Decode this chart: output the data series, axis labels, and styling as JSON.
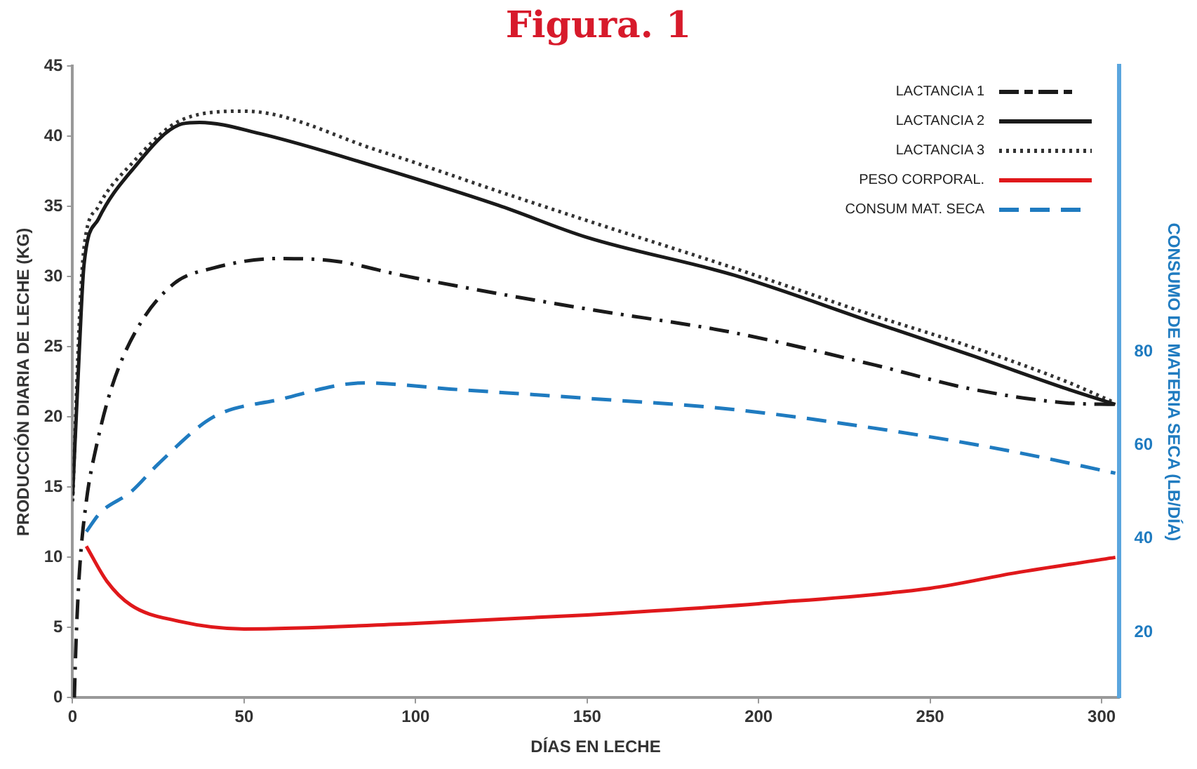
{
  "chart_data": {
    "type": "line",
    "title": "Figura. 1",
    "xlabel": "DÍAS EN LECHE",
    "ylabel": "PRODUCCIÓN DIARIA DE LECHE (KG)",
    "y2label": "CONSUMO DE MATERIA SECA (LB/DÍA)",
    "xlim": [
      0,
      305
    ],
    "xticks": [
      0,
      50,
      100,
      150,
      200,
      250,
      300
    ],
    "ylim": [
      0,
      45
    ],
    "yticks": [
      0,
      5,
      10,
      15,
      20,
      25,
      30,
      35,
      40,
      45
    ],
    "y2lim": [
      6,
      141
    ],
    "y2ticks": [
      20,
      40,
      60,
      80
    ],
    "grid": false,
    "legend": "top right",
    "marker": "none",
    "series": [
      {
        "name": "LACTANCIA 1",
        "color": "#1a1a1a",
        "line_style": "dashdot",
        "x": [
          0.5,
          1,
          2,
          4,
          7,
          11.5,
          18.6,
          29.5,
          40.7,
          60,
          77,
          96,
          124,
          150,
          193,
          234,
          262,
          290,
          304
        ],
        "values": [
          0,
          4,
          9,
          14,
          18,
          22.2,
          26.2,
          29.5,
          30.6,
          31.3,
          31.1,
          30.1,
          28.8,
          27.7,
          26,
          23.7,
          22,
          21,
          20.9
        ]
      },
      {
        "name": "LACTANCIA 2",
        "color": "#1a1a1a",
        "line_style": "solid",
        "x": [
          0,
          2,
          3.3,
          7.5,
          17,
          32,
          37,
          54.6,
          89,
          124,
          150,
          193,
          234,
          262,
          290,
          304
        ],
        "values": [
          14.4,
          25,
          30.8,
          34.1,
          37.5,
          40.9,
          41,
          40.2,
          37.8,
          35.1,
          32.8,
          30.1,
          26.7,
          24.4,
          22,
          20.9
        ]
      },
      {
        "name": "LACTANCIA 3",
        "color": "#333333",
        "line_style": "dotted",
        "x": [
          0,
          2,
          3.3,
          7.5,
          17,
          32,
          50,
          89,
          124,
          150,
          193,
          234,
          262,
          290,
          304
        ],
        "values": [
          14,
          27,
          32,
          35,
          38,
          41.2,
          41.8,
          39,
          36.1,
          34,
          30.6,
          27.2,
          25,
          22.5,
          21
        ]
      },
      {
        "name": "PESO CORPORAL.",
        "color": "#e0181b",
        "line_style": "solid",
        "x": [
          4,
          10,
          17,
          30,
          50,
          100,
          150,
          200,
          250,
          275,
          304
        ],
        "values": [
          10.8,
          8.3,
          6.6,
          5.5,
          4.9,
          5.3,
          5.9,
          6.7,
          7.8,
          8.9,
          10
        ]
      },
      {
        "name": "CONSUM MAT. SECA",
        "color": "#1f7bc0",
        "line_style": "dashed",
        "axis": "y2",
        "x": [
          4,
          8,
          17,
          25,
          41,
          60,
          85,
          110,
          150,
          193,
          248,
          275,
          304
        ],
        "values": [
          41.5,
          45.5,
          50,
          56,
          66,
          69.7,
          73.3,
          72,
          70,
          67.6,
          62,
          58.5,
          54
        ]
      }
    ]
  }
}
